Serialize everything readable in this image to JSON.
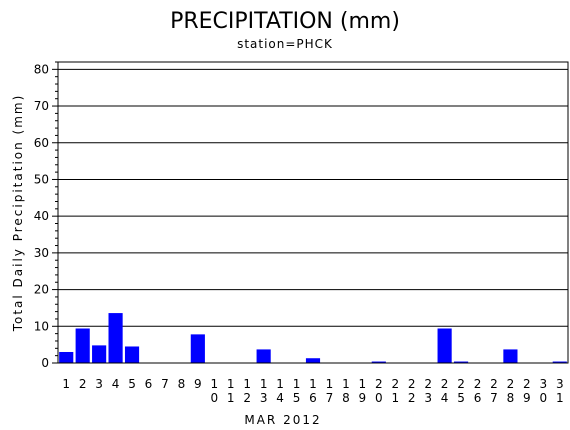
{
  "chart_data": {
    "type": "bar",
    "title": "PRECIPITATION (mm)",
    "subtitle": "station=PHCK",
    "xlabel": "MAR 2012",
    "ylabel": "Total Daily Precipitation (mm)",
    "ylim": [
      0,
      82
    ],
    "yticks": [
      0,
      10,
      20,
      30,
      40,
      50,
      60,
      70,
      80
    ],
    "grid": true,
    "bar_color": "#0000ff",
    "categories": [
      "1",
      "2",
      "3",
      "4",
      "5",
      "6",
      "7",
      "8",
      "9",
      "10",
      "11",
      "12",
      "13",
      "14",
      "15",
      "16",
      "17",
      "18",
      "19",
      "20",
      "21",
      "22",
      "23",
      "24",
      "25",
      "26",
      "27",
      "28",
      "29",
      "30",
      "31"
    ],
    "values": [
      3.0,
      9.4,
      4.8,
      13.6,
      4.5,
      0,
      0,
      0,
      7.8,
      0,
      0,
      0,
      3.7,
      0,
      0,
      1.3,
      0,
      0,
      0,
      0.4,
      0,
      0,
      0,
      9.4,
      0.4,
      0,
      0,
      3.7,
      0,
      0,
      0.4
    ]
  }
}
